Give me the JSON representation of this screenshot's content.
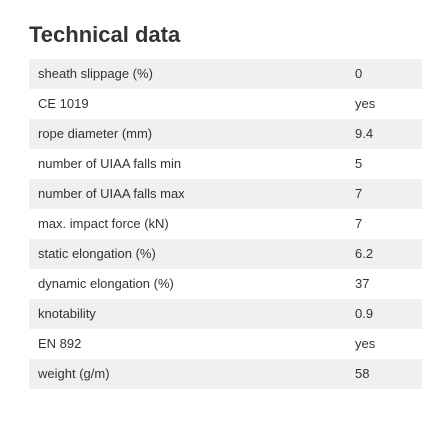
{
  "section": {
    "title": "Technical data"
  },
  "rows": [
    {
      "label": "sheath slippage (%)",
      "value": "0"
    },
    {
      "label": "CE 1019",
      "value": "yes"
    },
    {
      "label": "rope diameter (mm)",
      "value": "9.4"
    },
    {
      "label": "number of UIAA falls min",
      "value": "5"
    },
    {
      "label": "number of UIAA falls max",
      "value": "7"
    },
    {
      "label": "max. impact force (kN)",
      "value": "7"
    },
    {
      "label": "static elongation (%)",
      "value": "6.2"
    },
    {
      "label": "dynamic elongation (%)",
      "value": "37"
    },
    {
      "label": "knotability",
      "value": "0.9"
    },
    {
      "label": "EN 892",
      "value": "yes"
    },
    {
      "label": "weight (g/m)",
      "value": "58"
    }
  ],
  "colors": {
    "row_stripe": "#f0f0ee",
    "text": "#333333"
  }
}
